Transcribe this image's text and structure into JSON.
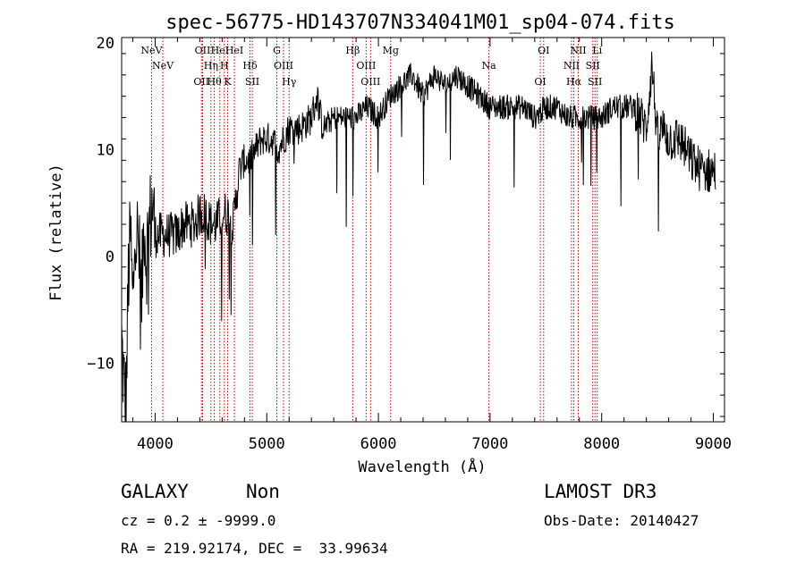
{
  "chart_data": {
    "type": "line",
    "title": "spec-56775-HD143707N334041M01_sp04-074.fits",
    "xlabel": "Wavelength (Å)",
    "ylabel": "Flux (relative)",
    "xlim": [
      3700,
      9100
    ],
    "ylim": [
      -15.5,
      20.5
    ],
    "xticks": [
      4000,
      5000,
      6000,
      7000,
      8000,
      9000
    ],
    "yticks": [
      -10,
      0,
      10,
      20
    ],
    "xtick_labels": [
      "4000",
      "5000",
      "6000",
      "7000",
      "8000",
      "9000"
    ],
    "ytick_labels": [
      "−10",
      "0",
      "10",
      "20"
    ],
    "grid": false,
    "series": [
      {
        "color": "#000000",
        "x": [
          3700,
          3720,
          3740,
          3760,
          3780,
          3800,
          3820,
          3850,
          3880,
          3900,
          3920,
          3950,
          3980,
          4000,
          4050,
          4100,
          4150,
          4200,
          4250,
          4300,
          4350,
          4400,
          4450,
          4500,
          4550,
          4600,
          4650,
          4700,
          4750,
          4800,
          4850,
          4900,
          4950,
          5000,
          5050,
          5100,
          5150,
          5200,
          5300,
          5400,
          5450,
          5500,
          5600,
          5700,
          5800,
          5900,
          6000,
          6100,
          6200,
          6300,
          6400,
          6500,
          6600,
          6700,
          6800,
          6900,
          7000,
          7100,
          7200,
          7300,
          7400,
          7500,
          7600,
          7700,
          7800,
          7900,
          8000,
          8100,
          8200,
          8300,
          8400,
          8450,
          8500,
          8550,
          8600,
          8700,
          8800,
          8900,
          9000
        ],
        "y": [
          -8,
          -12,
          -14,
          -2,
          2,
          -5,
          3,
          1,
          -4,
          4,
          0,
          3,
          5,
          2,
          2,
          2,
          2,
          2,
          3,
          3,
          3,
          4,
          4,
          3,
          3,
          4,
          4,
          3,
          8,
          9,
          9,
          10,
          11,
          11,
          11,
          10,
          11,
          12,
          12,
          13,
          15,
          12,
          13,
          13,
          13,
          14,
          13,
          15,
          16,
          17,
          15,
          17,
          16,
          17,
          16,
          15,
          14,
          14,
          14,
          14,
          13,
          14,
          14,
          13,
          13,
          13,
          13,
          14,
          14,
          14,
          12,
          18,
          11,
          12,
          11,
          11,
          9,
          8,
          8
        ]
      }
    ],
    "lines": [
      {
        "wave": 3968,
        "label": "NeV"
      },
      {
        "wave": 4069,
        "label": "NeV"
      },
      {
        "wave": 4415,
        "label": "OII"
      },
      {
        "wave": 4425,
        "label": "OII"
      },
      {
        "wave": 4500,
        "label": "Hη"
      },
      {
        "wave": 4530,
        "label": "Hθ"
      },
      {
        "wave": 4580,
        "label": "HeI"
      },
      {
        "wave": 4620,
        "label": "H"
      },
      {
        "wave": 4650,
        "label": "K"
      },
      {
        "wave": 4710,
        "label": "HeI"
      },
      {
        "wave": 4850,
        "label": "Hδ"
      },
      {
        "wave": 4870,
        "label": "SII"
      },
      {
        "wave": 5090,
        "label": "G"
      },
      {
        "wave": 5150,
        "label": "OIII"
      },
      {
        "wave": 5200,
        "label": "Hγ"
      },
      {
        "wave": 5770,
        "label": "Hβ"
      },
      {
        "wave": 5890,
        "label": "OIII"
      },
      {
        "wave": 5930,
        "label": "OIII"
      },
      {
        "wave": 6110,
        "label": "Mg"
      },
      {
        "wave": 6990,
        "label": "Na"
      },
      {
        "wave": 7450,
        "label": "OI"
      },
      {
        "wave": 7480,
        "label": "OI"
      },
      {
        "wave": 7730,
        "label": "NII"
      },
      {
        "wave": 7750,
        "label": "Hα"
      },
      {
        "wave": 7790,
        "label": "NII"
      },
      {
        "wave": 7920,
        "label": "SII"
      },
      {
        "wave": 7940,
        "label": "SII"
      },
      {
        "wave": 7960,
        "label": "Li"
      }
    ]
  },
  "info": {
    "class_label": "GALAXY",
    "subclass_label": "Non",
    "survey_label": "LAMOST DR3",
    "cz_text": "cz = 0.2 ± -9999.0",
    "obsdate_text": "Obs-Date: 20140427",
    "radec_text": "RA = 219.92174, DEC =  33.99634"
  }
}
